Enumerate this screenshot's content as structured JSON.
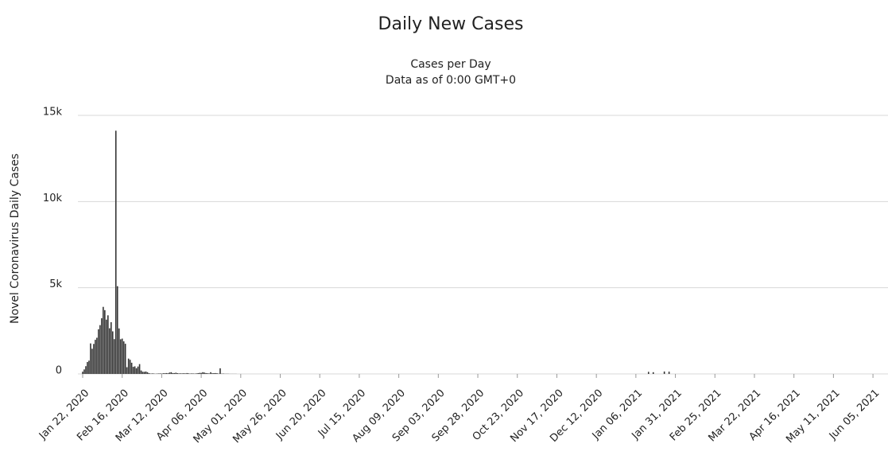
{
  "chart_data": {
    "type": "bar",
    "title": "Daily New Cases",
    "subtitle": [
      "Cases per Day",
      "Data as of 0:00 GMT+0"
    ],
    "ylabel": "Novel Coronavirus Daily Cases",
    "color": "#333333",
    "grid": true,
    "ylim": [
      0,
      15000
    ],
    "yticks": [
      0,
      {
        "value": 5000,
        "label": "5k"
      },
      {
        "value": 10000,
        "label": "10k"
      },
      {
        "value": 15000,
        "label": "15k"
      }
    ],
    "categories": [
      "Jan 22, 2020",
      null,
      null,
      null,
      null,
      null,
      null,
      null,
      null,
      null,
      null,
      null,
      null,
      null,
      null,
      null,
      null,
      null,
      null,
      null,
      null,
      null,
      null,
      null,
      null,
      "Feb 16, 2020",
      null,
      null,
      null,
      null,
      null,
      null,
      null,
      null,
      null,
      null,
      null,
      null,
      null,
      null,
      null,
      null,
      null,
      null,
      null,
      null,
      null,
      null,
      null,
      null,
      "Mar 12, 2020",
      null,
      null,
      null,
      null,
      null,
      null,
      null,
      null,
      null,
      null,
      null,
      null,
      null,
      null,
      null,
      null,
      null,
      null,
      null,
      null,
      null,
      null,
      null,
      null,
      "Apr 06, 2020",
      null,
      null,
      null,
      null,
      null,
      null,
      null,
      null,
      null,
      null,
      null,
      null,
      null,
      null,
      null,
      null,
      null,
      null,
      null,
      null,
      null,
      null,
      null,
      null,
      "May 01, 2020",
      null,
      null,
      null,
      null,
      null,
      null,
      null,
      null,
      null,
      null,
      null,
      null,
      null,
      null,
      null,
      null,
      null,
      null,
      null,
      null,
      null,
      null,
      null,
      null,
      "May 26, 2020",
      null,
      null,
      null,
      null,
      null,
      null,
      null,
      null,
      null,
      null,
      null,
      null,
      null,
      null,
      null,
      null,
      null,
      null,
      null,
      null,
      null,
      null,
      null,
      null,
      "Jun 20, 2020",
      null,
      null,
      null,
      null,
      null,
      null,
      null,
      null,
      null,
      null,
      null,
      null,
      null,
      null,
      null,
      null,
      null,
      null,
      null,
      null,
      null,
      null,
      null,
      null,
      "Jul 15, 2020",
      null,
      null,
      null,
      null,
      null,
      null,
      null,
      null,
      null,
      null,
      null,
      null,
      null,
      null,
      null,
      null,
      null,
      null,
      null,
      null,
      null,
      null,
      null,
      null,
      "Aug 09, 2020",
      null,
      null,
      null,
      null,
      null,
      null,
      null,
      null,
      null,
      null,
      null,
      null,
      null,
      null,
      null,
      null,
      null,
      null,
      null,
      null,
      null,
      null,
      null,
      null,
      "Sep 03, 2020",
      null,
      null,
      null,
      null,
      null,
      null,
      null,
      null,
      null,
      null,
      null,
      null,
      null,
      null,
      null,
      null,
      null,
      null,
      null,
      null,
      null,
      null,
      null,
      null,
      "Sep 28, 2020",
      null,
      null,
      null,
      null,
      null,
      null,
      null,
      null,
      null,
      null,
      null,
      null,
      null,
      null,
      null,
      null,
      null,
      null,
      null,
      null,
      null,
      null,
      null,
      null,
      "Oct 23, 2020",
      null,
      null,
      null,
      null,
      null,
      null,
      null,
      null,
      null,
      null,
      null,
      null,
      null,
      null,
      null,
      null,
      null,
      null,
      null,
      null,
      null,
      null,
      null,
      null,
      "Nov 17, 2020",
      null,
      null,
      null,
      null,
      null,
      null,
      null,
      null,
      null,
      null,
      null,
      null,
      null,
      null,
      null,
      null,
      null,
      null,
      null,
      null,
      null,
      null,
      null,
      null,
      "Dec 12, 2020",
      null,
      null,
      null,
      null,
      null,
      null,
      null,
      null,
      null,
      null,
      null,
      null,
      null,
      null,
      null,
      null,
      null,
      null,
      null,
      null,
      null,
      null,
      null,
      null,
      "Jan 06, 2021",
      null,
      null,
      null,
      null,
      null,
      null,
      null,
      null,
      null,
      null,
      null,
      null,
      null,
      null,
      null,
      null,
      null,
      null,
      null,
      null,
      null,
      null,
      null,
      null,
      "Jan 31, 2021",
      null,
      null,
      null,
      null,
      null,
      null,
      null,
      null,
      null,
      null,
      null,
      null,
      null,
      null,
      null,
      null,
      null,
      null,
      null,
      null,
      null,
      null,
      null,
      null,
      "Feb 25, 2021",
      null,
      null,
      null,
      null,
      null,
      null,
      null,
      null,
      null,
      null,
      null,
      null,
      null,
      null,
      null,
      null,
      null,
      null,
      null,
      null,
      null,
      null,
      null,
      null,
      "Mar 22, 2021",
      null,
      null,
      null,
      null,
      null,
      null,
      null,
      null,
      null,
      null,
      null,
      null,
      null,
      null,
      null,
      null,
      null,
      null,
      null,
      null,
      null,
      null,
      null,
      null,
      "Apr 16, 2021",
      null,
      null,
      null,
      null,
      null,
      null,
      null,
      null,
      null,
      null,
      null,
      null,
      null,
      null,
      null,
      null,
      null,
      null,
      null,
      null,
      null,
      null,
      null,
      null,
      "May 11, 2021",
      null,
      null,
      null,
      null,
      null,
      null,
      null,
      null,
      null,
      null,
      null,
      null,
      null,
      null,
      null,
      null,
      null,
      null,
      null,
      null,
      null,
      null,
      null,
      null,
      "Jun 05, 2021",
      null,
      null,
      null,
      null,
      null,
      null,
      null
    ],
    "values": [
      130,
      260,
      450,
      690,
      770,
      1770,
      1460,
      1740,
      1980,
      2100,
      2590,
      2830,
      3230,
      3890,
      3700,
      3150,
      3400,
      2650,
      3000,
      2470,
      2020,
      14110,
      5090,
      2640,
      2010,
      2050,
      1890,
      1750,
      390,
      890,
      820,
      650,
      410,
      440,
      330,
      430,
      570,
      200,
      125,
      120,
      140,
      100,
      45,
      20,
      30,
      25,
      10,
      20,
      25,
      30,
      20,
      40,
      40,
      50,
      40,
      80,
      100,
      50,
      50,
      70,
      45,
      30,
      35,
      30,
      40,
      30,
      50,
      35,
      20,
      30,
      25,
      20,
      30,
      45,
      60,
      60,
      100,
      80,
      50,
      40,
      30,
      100,
      40,
      45,
      50,
      40,
      20,
      325,
      15,
      20,
      10,
      10,
      10,
      5,
      5,
      5,
      5,
      5,
      0,
      0,
      0,
      0,
      0,
      0,
      0,
      0,
      0,
      0,
      0,
      0,
      0,
      0,
      0,
      0,
      0,
      0,
      0,
      0,
      0,
      0,
      0,
      0,
      0,
      0,
      0,
      0,
      0,
      0,
      0,
      0,
      0,
      0,
      0,
      0,
      0,
      0,
      0,
      0,
      0,
      0,
      0,
      0,
      0,
      0,
      0,
      0,
      0,
      0,
      0,
      0,
      0,
      0,
      0,
      0,
      0,
      0,
      0,
      0,
      0,
      0,
      0,
      0,
      0,
      0,
      0,
      0,
      0,
      0,
      0,
      0,
      0,
      0,
      0,
      0,
      0,
      0,
      0,
      0,
      0,
      0,
      0,
      0,
      0,
      0,
      0,
      0,
      0,
      0,
      0,
      0,
      0,
      0,
      0,
      0,
      0,
      0,
      0,
      0,
      0,
      0,
      0,
      0,
      0,
      0,
      0,
      0,
      0,
      0,
      0,
      0,
      0,
      0,
      0,
      0,
      0,
      0,
      0,
      0,
      0,
      0,
      0,
      0,
      0,
      0,
      0,
      0,
      0,
      0,
      0,
      0,
      0,
      0,
      0,
      0,
      0,
      0,
      0,
      0,
      0,
      0,
      0,
      0,
      0,
      0,
      0,
      0,
      0,
      0,
      0,
      0,
      0,
      0,
      0,
      0,
      0,
      0,
      0,
      0,
      0,
      0,
      0,
      0,
      0,
      0,
      0,
      0,
      0,
      0,
      0,
      0,
      0,
      0,
      0,
      0,
      0,
      0,
      0,
      0,
      0,
      0,
      0,
      0,
      0,
      0,
      0,
      0,
      0,
      0,
      0,
      0,
      0,
      0,
      0,
      0,
      0,
      0,
      0,
      0,
      0,
      0,
      0,
      0,
      0,
      0,
      0,
      0,
      0,
      0,
      0,
      0,
      0,
      0,
      0,
      0,
      0,
      0,
      0,
      0,
      0,
      0,
      0,
      0,
      0,
      0,
      0,
      0,
      0,
      0,
      0,
      0,
      0,
      0,
      0,
      0,
      0,
      0,
      0,
      0,
      0,
      0,
      0,
      0,
      0,
      0,
      0,
      0,
      0,
      0,
      0,
      0,
      0,
      0,
      0,
      0,
      0,
      0,
      0,
      0,
      120,
      0,
      0,
      100,
      0,
      0,
      0,
      0,
      0,
      0,
      140,
      0,
      0,
      130,
      0,
      0,
      0,
      0,
      0,
      0,
      0,
      0,
      0,
      0,
      0,
      0,
      0,
      0,
      0,
      0,
      0,
      0,
      0,
      0,
      0,
      0,
      0,
      0,
      0,
      0,
      0,
      0,
      0,
      0,
      0,
      0,
      0,
      0,
      0,
      0,
      0,
      0,
      0,
      0,
      0,
      0,
      0,
      0,
      0,
      0,
      0,
      0,
      0,
      0,
      0,
      0,
      0,
      0,
      0,
      0,
      0,
      0,
      0,
      0,
      0,
      0,
      0,
      0,
      0,
      0,
      0,
      0,
      0,
      0,
      0,
      0,
      0,
      0,
      0,
      0,
      0,
      0,
      0,
      0,
      0,
      0,
      0,
      0,
      0,
      0,
      0,
      0,
      0,
      0,
      0,
      0,
      0,
      0,
      0,
      0,
      0,
      0,
      0,
      0,
      0,
      0,
      0,
      0,
      0,
      0,
      0,
      0,
      0,
      0,
      0,
      0,
      0,
      0,
      0,
      0,
      0,
      0,
      0,
      0,
      0,
      0,
      0,
      0,
      0,
      0,
      0,
      0,
      0,
      0,
      0,
      0,
      0,
      0,
      0,
      0
    ]
  }
}
